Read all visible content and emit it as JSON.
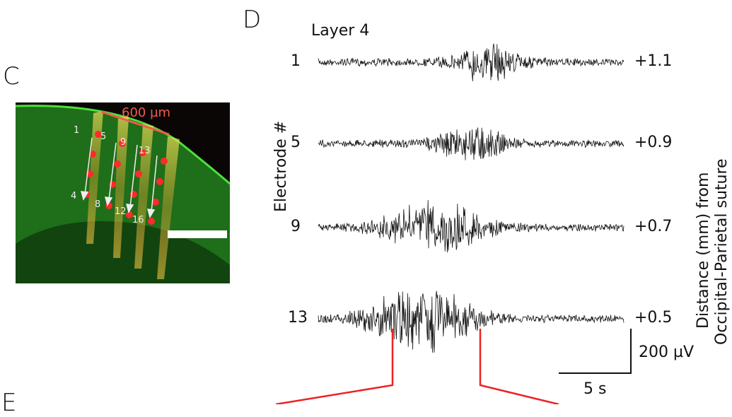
{
  "panels": {
    "c": {
      "letter": "C",
      "scale_label": "600 µm",
      "electrode_labels": [
        "1",
        "4",
        "5",
        "8",
        "9",
        "12",
        "13",
        "16"
      ],
      "colors": {
        "tissue": "#1f7a1a",
        "electrode": "#ff2a2a",
        "scale_line": "#f25a4a"
      }
    },
    "d": {
      "letter": "D",
      "title": "Layer 4",
      "y_axis_label": "Electrode #",
      "right_axis_label_line1": "Distance (mm) from",
      "right_axis_label_line2": "Occipital-Parietal suture",
      "traces": [
        {
          "electrode": "1",
          "distance": "+1.1"
        },
        {
          "electrode": "5",
          "distance": "+0.9"
        },
        {
          "electrode": "9",
          "distance": "+0.7"
        },
        {
          "electrode": "13",
          "distance": "+0.5"
        }
      ],
      "scale_bar": {
        "voltage": "200 µV",
        "time": "5 s"
      },
      "zoom_color": "#ee2222"
    },
    "e": {
      "letter": "E"
    }
  }
}
